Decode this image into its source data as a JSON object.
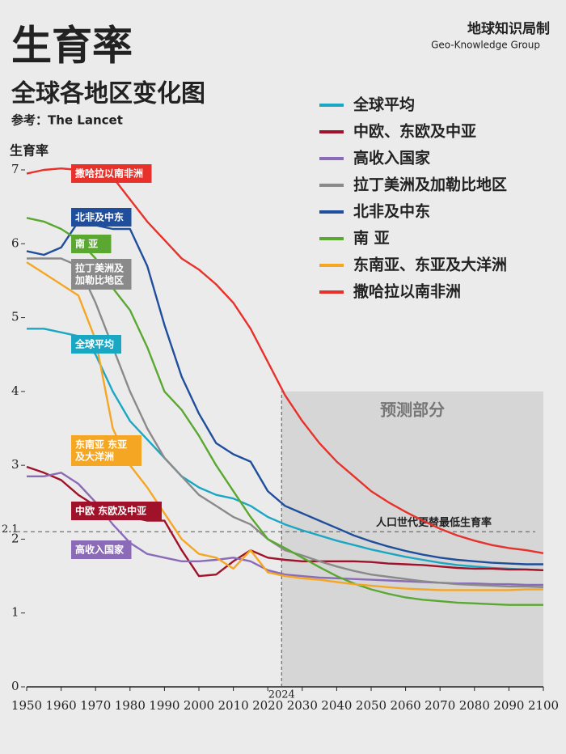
{
  "chart_data": {
    "type": "line",
    "title": "生育率",
    "subtitle": "全球各地区变化图",
    "source": "参考：The Lancet",
    "brand": "地球知识局制",
    "brand_en": "Geo-Knowledge Group",
    "y_label": "生育率",
    "xlim": [
      1950,
      2100
    ],
    "ylim": [
      0,
      7
    ],
    "xticks": [
      1950,
      1960,
      1970,
      1980,
      1990,
      2000,
      2010,
      2020,
      2030,
      2040,
      2050,
      2060,
      2070,
      2080,
      2090,
      2100
    ],
    "yticks": [
      0,
      1,
      2,
      3,
      4,
      5,
      6,
      7
    ],
    "forecast_region": {
      "label": "预测部分",
      "x": [
        2024,
        2100
      ],
      "y": [
        0,
        4
      ]
    },
    "forecast_start": {
      "value": 2024,
      "label": "2024"
    },
    "replacement_rate": {
      "value": 2.1,
      "label": "2.1",
      "text": "人口世代更替最低生育率"
    },
    "x": [
      1950,
      1955,
      1960,
      1965,
      1970,
      1975,
      1980,
      1985,
      1990,
      1995,
      2000,
      2005,
      2010,
      2015,
      2020,
      2025,
      2030,
      2035,
      2040,
      2045,
      2050,
      2055,
      2060,
      2065,
      2070,
      2075,
      2080,
      2085,
      2090,
      2095,
      2100
    ],
    "series": [
      {
        "name": "全球平均",
        "tag": [
          "全球平均"
        ],
        "color": "#1aa7c4",
        "values": [
          4.85,
          4.85,
          4.8,
          4.75,
          4.5,
          4.0,
          3.6,
          3.35,
          3.1,
          2.85,
          2.7,
          2.6,
          2.55,
          2.45,
          2.3,
          2.2,
          2.12,
          2.05,
          1.98,
          1.92,
          1.86,
          1.81,
          1.76,
          1.72,
          1.68,
          1.65,
          1.63,
          1.61,
          1.6,
          1.59,
          1.58
        ]
      },
      {
        "name": "中欧、东欧及中亚",
        "tag": [
          "中欧 东欧及中亚"
        ],
        "color": "#a0122a",
        "values": [
          2.98,
          2.9,
          2.8,
          2.6,
          2.45,
          2.4,
          2.3,
          2.25,
          2.25,
          1.85,
          1.5,
          1.52,
          1.7,
          1.85,
          1.75,
          1.72,
          1.7,
          1.7,
          1.7,
          1.7,
          1.69,
          1.67,
          1.66,
          1.65,
          1.63,
          1.61,
          1.6,
          1.6,
          1.59,
          1.59,
          1.58
        ]
      },
      {
        "name": "高收入国家",
        "tag": [
          "高收入国家"
        ],
        "color": "#8b6bb8",
        "values": [
          2.85,
          2.85,
          2.9,
          2.75,
          2.5,
          2.2,
          1.95,
          1.8,
          1.75,
          1.7,
          1.7,
          1.72,
          1.75,
          1.7,
          1.58,
          1.52,
          1.5,
          1.48,
          1.47,
          1.46,
          1.45,
          1.44,
          1.43,
          1.42,
          1.41,
          1.4,
          1.4,
          1.39,
          1.39,
          1.38,
          1.38
        ]
      },
      {
        "name": "拉丁美洲及加勒比地区",
        "tag": [
          "拉丁美洲及",
          "加勒比地区"
        ],
        "color": "#8a8a8a",
        "values": [
          5.8,
          5.8,
          5.8,
          5.7,
          5.2,
          4.6,
          4.0,
          3.5,
          3.1,
          2.85,
          2.6,
          2.45,
          2.3,
          2.2,
          2.0,
          1.85,
          1.78,
          1.7,
          1.63,
          1.57,
          1.52,
          1.49,
          1.46,
          1.43,
          1.41,
          1.39,
          1.38,
          1.37,
          1.36,
          1.36,
          1.35
        ]
      },
      {
        "name": "北非及中东",
        "tag": [
          "北非及中东"
        ],
        "color": "#1f4e9c",
        "values": [
          5.9,
          5.85,
          5.95,
          6.3,
          6.25,
          6.2,
          6.2,
          5.7,
          4.9,
          4.2,
          3.7,
          3.3,
          3.15,
          3.05,
          2.65,
          2.45,
          2.35,
          2.25,
          2.15,
          2.05,
          1.97,
          1.9,
          1.84,
          1.79,
          1.75,
          1.72,
          1.7,
          1.68,
          1.67,
          1.66,
          1.66
        ]
      },
      {
        "name": "南 亚",
        "tag": [
          "南 亚"
        ],
        "color": "#5aa832",
        "values": [
          6.35,
          6.3,
          6.2,
          6.05,
          5.8,
          5.4,
          5.1,
          4.6,
          4.0,
          3.75,
          3.4,
          3.0,
          2.65,
          2.3,
          2.0,
          1.88,
          1.75,
          1.62,
          1.5,
          1.4,
          1.32,
          1.26,
          1.21,
          1.18,
          1.16,
          1.14,
          1.13,
          1.12,
          1.11,
          1.11,
          1.11
        ]
      },
      {
        "name": "东南亚、东亚及大洋洲",
        "tag": [
          "东南亚 东亚",
          "及大洋洲"
        ],
        "color": "#f5a623",
        "values": [
          5.75,
          5.6,
          5.45,
          5.3,
          4.7,
          3.5,
          3.0,
          2.7,
          2.35,
          2.0,
          1.8,
          1.75,
          1.6,
          1.85,
          1.55,
          1.5,
          1.47,
          1.45,
          1.42,
          1.39,
          1.37,
          1.35,
          1.33,
          1.32,
          1.31,
          1.31,
          1.31,
          1.31,
          1.31,
          1.32,
          1.32
        ]
      },
      {
        "name": "撒哈拉以南非洲",
        "tag": [
          "撒哈拉以南非洲"
        ],
        "color": "#e8312a",
        "values": [
          6.95,
          7.0,
          7.02,
          7.0,
          7.0,
          6.9,
          6.6,
          6.3,
          6.05,
          5.8,
          5.65,
          5.45,
          5.2,
          4.85,
          4.4,
          3.95,
          3.6,
          3.3,
          3.05,
          2.85,
          2.65,
          2.5,
          2.37,
          2.25,
          2.14,
          2.05,
          1.98,
          1.92,
          1.88,
          1.85,
          1.81
        ]
      }
    ]
  }
}
